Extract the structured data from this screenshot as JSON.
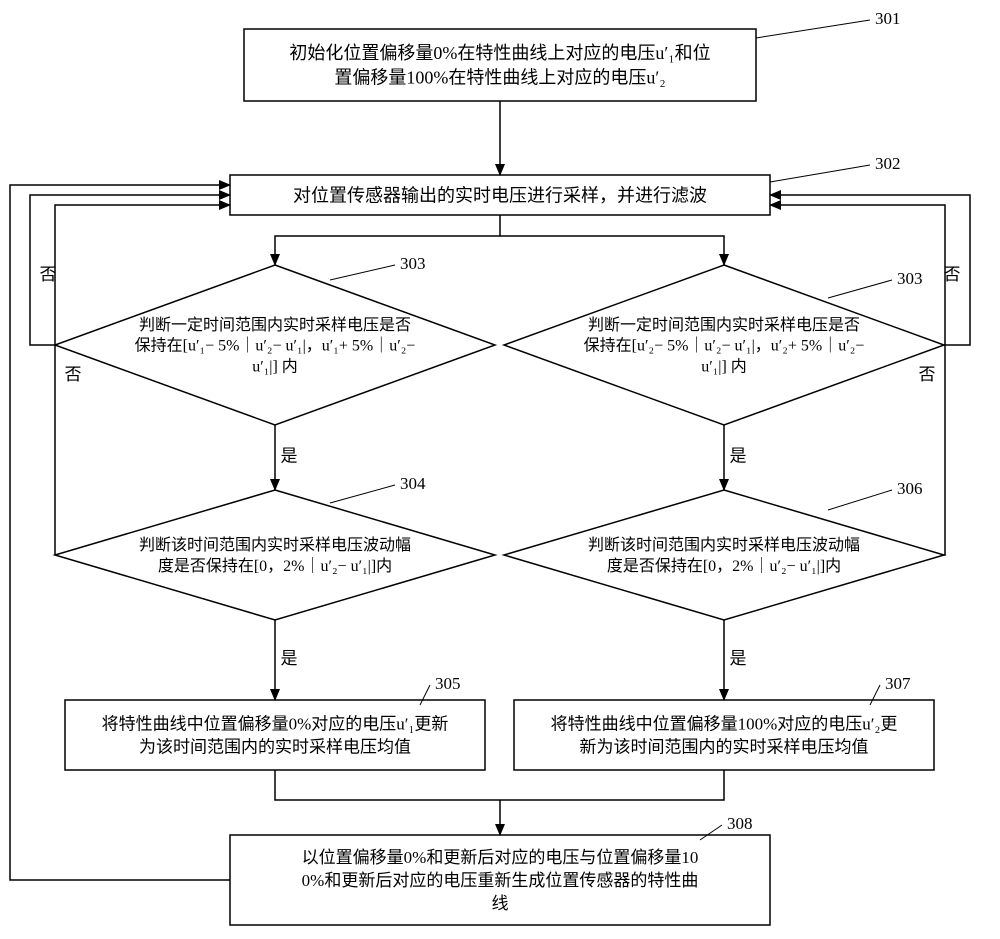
{
  "type": "flowchart",
  "background_color": "#ffffff",
  "stroke_color": "#000000",
  "font_family": "SimSun",
  "yes_label": "是",
  "no_label": "否",
  "labels": {
    "n301": "301",
    "n302": "302",
    "n303L": "303",
    "n303R": "303",
    "n304": "304",
    "n305": "305",
    "n306": "306",
    "n307": "307",
    "n308": "308"
  },
  "nodes": {
    "n301": {
      "shape": "rect",
      "lines": [
        "初始化位置偏移量0%在特性曲线上对应的电压u′₁和位",
        "置偏移量100%在特性曲线上对应的电压u′₂"
      ],
      "fontsize": 18
    },
    "n302": {
      "shape": "rect",
      "lines": [
        "对位置传感器输出的实时电压进行采样，并进行滤波"
      ],
      "fontsize": 18
    },
    "n303L": {
      "shape": "diamond",
      "lines": [
        "判断一定时间范围内实时采样电压是否",
        "保持在[u′₁− 5%｜u′₂− u′₁|，u′₁+ 5%｜u′₂−",
        "u′₁|] 内"
      ],
      "fontsize": 16
    },
    "n303R": {
      "shape": "diamond",
      "lines": [
        "判断一定时间范围内实时采样电压是否",
        "保持在[u′₂− 5%｜u′₂− u′₁|，u′₂+ 5%｜u′₂−",
        "u′₁|] 内"
      ],
      "fontsize": 16
    },
    "n304": {
      "shape": "diamond",
      "lines": [
        "判断该时间范围内实时采样电压波动幅",
        "度是否保持在[0，2%｜u′₂− u′₁|]内"
      ],
      "fontsize": 16
    },
    "n306": {
      "shape": "diamond",
      "lines": [
        "判断该时间范围内实时采样电压波动幅",
        "度是否保持在[0，2%｜u′₂− u′₁|]内"
      ],
      "fontsize": 16
    },
    "n305": {
      "shape": "rect",
      "lines": [
        "将特性曲线中位置偏移量0%对应的电压u′₁更新",
        "为该时间范围内的实时采样电压均值"
      ],
      "fontsize": 17
    },
    "n307": {
      "shape": "rect",
      "lines": [
        "将特性曲线中位置偏移量100%对应的电压u′₂更",
        "新为该时间范围内的实时采样电压均值"
      ],
      "fontsize": 17
    },
    "n308": {
      "shape": "rect",
      "lines": [
        "以位置偏移量0%和更新后对应的电压与位置偏移量10",
        "0%和更新后对应的电压重新生成位置传感器的特性曲",
        "线"
      ],
      "fontsize": 17
    }
  }
}
